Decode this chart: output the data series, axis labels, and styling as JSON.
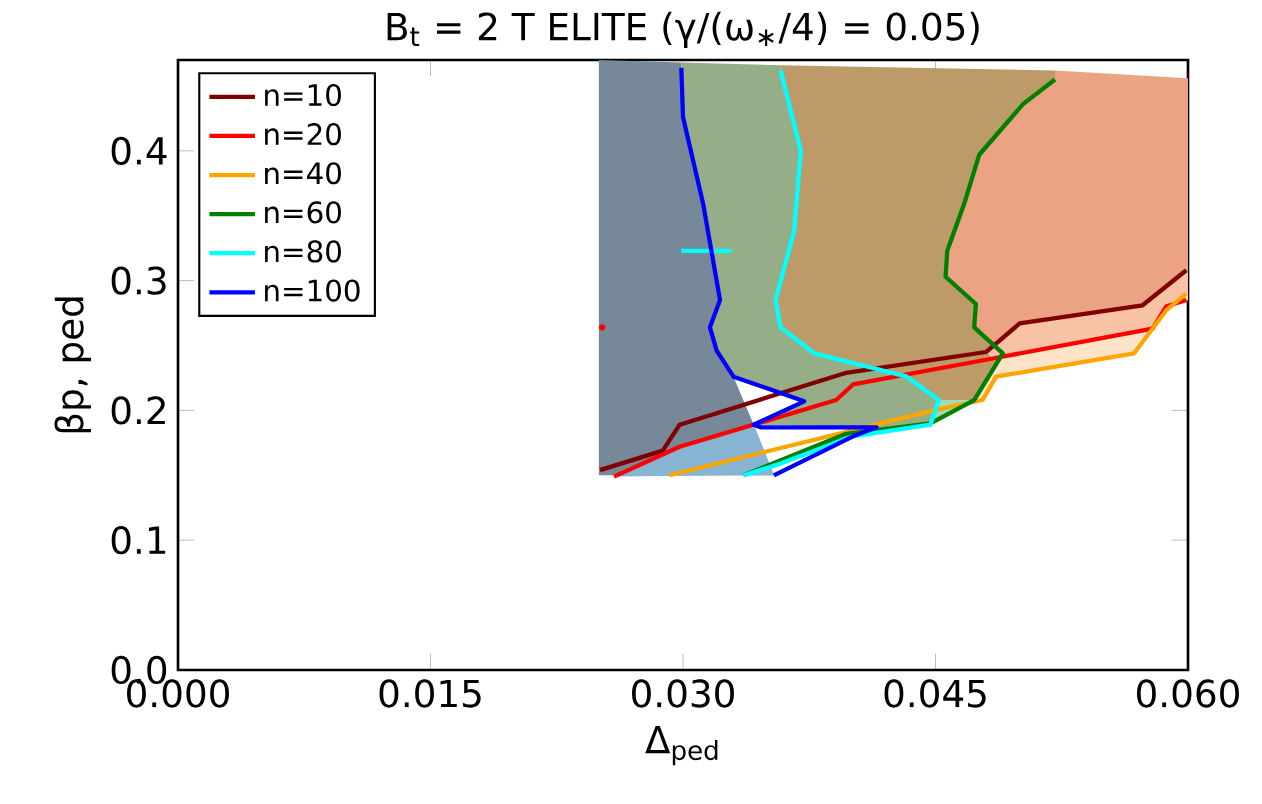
{
  "chart_data": {
    "type": "line",
    "title": "B$_{t}$ = 2 T ELITE (γ/(ω$_{∗}$/4) = 0.05)",
    "xlabel": "Δ$_{ped}$",
    "ylabel": "βp, ped",
    "xlim": [
      0,
      0.06
    ],
    "ylim": [
      0,
      0.47
    ],
    "xticks": [
      {
        "value": 0,
        "label": "0.000"
      },
      {
        "value": 0.015,
        "label": "0.015"
      },
      {
        "value": 0.03,
        "label": "0.030"
      },
      {
        "value": 0.045,
        "label": "0.045"
      },
      {
        "value": 0.06,
        "label": "0.060"
      }
    ],
    "yticks": [
      {
        "value": 0,
        "label": "0.0"
      },
      {
        "value": 0.1,
        "label": "0.1"
      },
      {
        "value": 0.2,
        "label": "0.2"
      },
      {
        "value": 0.3,
        "label": "0.3"
      },
      {
        "value": 0.4,
        "label": "0.4"
      }
    ],
    "legend": "top left",
    "grid": false,
    "marker": "none",
    "line_style": "solid",
    "series": [
      {
        "type": "area",
        "color": "#778899",
        "x": [
          0.025,
          0.0299,
          0.03,
          0.0312,
          0.0322,
          0.0316,
          0.032,
          0.033,
          0.0342,
          0.0354,
          0.025
        ],
        "values": [
          0.47,
          0.468,
          0.426,
          0.359,
          0.285,
          0.264,
          0.246,
          0.226,
          0.189,
          0.15,
          0.15
        ]
      },
      {
        "type": "area",
        "color": "#96ae88",
        "x": [
          0.0299,
          0.0358,
          0.037,
          0.0366,
          0.0355,
          0.0358,
          0.0378,
          0.0433,
          0.0452,
          0.0447,
          0.0401,
          0.0415,
          0.0342,
          0.0372,
          0.033,
          0.032,
          0.0316,
          0.0322,
          0.0312,
          0.03
        ],
        "values": [
          0.468,
          0.466,
          0.4,
          0.338,
          0.285,
          0.264,
          0.244,
          0.226,
          0.208,
          0.189,
          0.18,
          0.187,
          0.189,
          0.207,
          0.226,
          0.246,
          0.264,
          0.285,
          0.359,
          0.426
        ]
      },
      {
        "type": "area",
        "color": "#bc9b69",
        "x": [
          0.0358,
          0.0521,
          0.0521,
          0.0502,
          0.049,
          0.0476,
          0.0467,
          0.0457,
          0.0456,
          0.0474,
          0.0473,
          0.049,
          0.0473,
          0.0452,
          0.0433,
          0.0378,
          0.0358,
          0.0355,
          0.0366,
          0.037
        ],
        "values": [
          0.466,
          0.462,
          0.455,
          0.436,
          0.418,
          0.397,
          0.359,
          0.323,
          0.303,
          0.282,
          0.264,
          0.244,
          0.208,
          0.208,
          0.226,
          0.244,
          0.264,
          0.285,
          0.338,
          0.4
        ]
      },
      {
        "type": "area",
        "color": "#eca384",
        "x": [
          0.0521,
          0.06,
          0.06,
          0.0573,
          0.05,
          0.048,
          0.049,
          0.0473,
          0.0474,
          0.0456,
          0.0457,
          0.0467,
          0.0476,
          0.049,
          0.0502,
          0.0521
        ],
        "values": [
          0.462,
          0.456,
          0.308,
          0.281,
          0.267,
          0.245,
          0.244,
          0.264,
          0.282,
          0.303,
          0.323,
          0.359,
          0.397,
          0.418,
          0.436,
          0.455
        ]
      },
      {
        "type": "area",
        "color": "#f7c2a6",
        "x": [
          0.048,
          0.05,
          0.0573,
          0.06,
          0.06,
          0.0587,
          0.0579,
          0.0484
        ],
        "values": [
          0.245,
          0.267,
          0.281,
          0.308,
          0.285,
          0.28,
          0.263,
          0.24
        ]
      },
      {
        "type": "area",
        "color": "#fde4c6",
        "x": [
          0.0484,
          0.0579,
          0.0587,
          0.06,
          0.06,
          0.0587,
          0.0568,
          0.0486,
          0.0478,
          0.0473,
          0.049
        ],
        "values": [
          0.24,
          0.263,
          0.28,
          0.285,
          0.29,
          0.277,
          0.244,
          0.226,
          0.208,
          0.208,
          0.244
        ]
      },
      {
        "type": "area",
        "color": "#a2dbb4",
        "x": [
          0.0358,
          0.0401,
          0.0447,
          0.0452,
          0.0473,
          0.0447,
          0.0397,
          0.0336
        ],
        "values": [
          0.159,
          0.18,
          0.189,
          0.208,
          0.208,
          0.19,
          0.182,
          0.15
        ]
      },
      {
        "type": "area",
        "color": "#86b4d2",
        "x": [
          0.0259,
          0.0298,
          0.0342,
          0.0354,
          0.0336
        ],
        "values": [
          0.149,
          0.172,
          0.189,
          0.15,
          0.15
        ]
      },
      {
        "type": "scatter",
        "color": "#ff0000",
        "x": [
          0.0252
        ],
        "values": [
          0.264
        ]
      },
      {
        "name": "n=10",
        "color": "#800000",
        "x": [
          0.02507,
          0.0288,
          0.0298,
          0.0397,
          0.048,
          0.05,
          0.0573,
          0.0599
        ],
        "values": [
          0.154,
          0.169,
          0.189,
          0.229,
          0.245,
          0.267,
          0.281,
          0.308
        ]
      },
      {
        "name": "n=20",
        "color": "#ff0000",
        "x": [
          0.0259,
          0.0298,
          0.0391,
          0.0401,
          0.0484,
          0.0579,
          0.0587,
          0.0599
        ],
        "values": [
          0.149,
          0.172,
          0.208,
          0.22,
          0.24,
          0.263,
          0.28,
          0.285
        ]
      },
      {
        "name": "n=40",
        "color": "#ffa500",
        "x": [
          0.0292,
          0.0449,
          0.0478,
          0.0486,
          0.0568,
          0.0587,
          0.0599
        ],
        "values": [
          0.15,
          0.2,
          0.208,
          0.226,
          0.244,
          0.277,
          0.29
        ]
      },
      {
        "name": "n=60",
        "color": "#008000",
        "x": [
          0.0336,
          0.0397,
          0.0447,
          0.0473,
          0.049,
          0.0473,
          0.0474,
          0.0456,
          0.0457,
          0.0467,
          0.0476,
          0.049,
          0.0502,
          0.0521
        ],
        "values": [
          0.15,
          0.182,
          0.19,
          0.208,
          0.244,
          0.264,
          0.282,
          0.303,
          0.323,
          0.359,
          0.397,
          0.418,
          0.436,
          0.455
        ]
      },
      {
        "name": "n=80",
        "color": "#00ffff",
        "x": [
          0.0336,
          0.0358,
          0.0401,
          0.0447,
          0.0452,
          0.0433,
          0.0378,
          0.0358,
          0.0355,
          0.0366,
          0.037,
          0.0358
        ],
        "values": [
          0.15,
          0.159,
          0.18,
          0.189,
          0.208,
          0.226,
          0.244,
          0.264,
          0.285,
          0.338,
          0.4,
          0.462
        ]
      },
      {
        "type": "line",
        "color": "#00ffff",
        "x": [
          0.0299,
          0.0329
        ],
        "values": [
          0.323,
          0.323
        ]
      },
      {
        "name": "n=100",
        "color": "#0000ff",
        "x": [
          0.0354,
          0.0401,
          0.0415,
          0.0346,
          0.0342,
          0.0372,
          0.033,
          0.032,
          0.0316,
          0.0322,
          0.0312,
          0.03,
          0.0299
        ],
        "values": [
          0.15,
          0.18,
          0.187,
          0.187,
          0.189,
          0.207,
          0.226,
          0.246,
          0.264,
          0.285,
          0.359,
          0.426,
          0.464
        ]
      }
    ]
  }
}
